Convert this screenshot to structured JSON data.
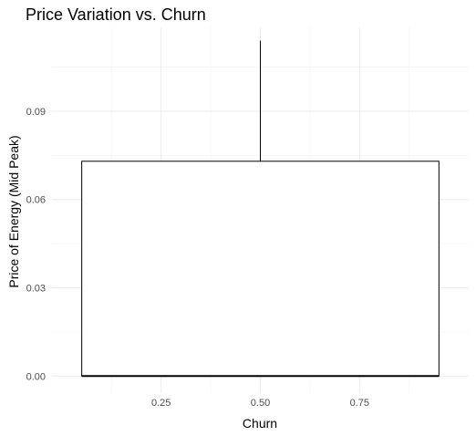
{
  "chart_data": {
    "type": "box",
    "title": "Price Variation vs. Churn",
    "xlabel": "Churn",
    "ylabel": "Price of Energy (Mid Peak)",
    "x_ticks": [
      {
        "value": 0.25,
        "label": "0.25"
      },
      {
        "value": 0.5,
        "label": "0.50"
      },
      {
        "value": 0.75,
        "label": "0.75"
      }
    ],
    "y_ticks": [
      {
        "value": 0.0,
        "label": "0.00"
      },
      {
        "value": 0.03,
        "label": "0.03"
      },
      {
        "value": 0.06,
        "label": "0.06"
      },
      {
        "value": 0.09,
        "label": "0.09"
      }
    ],
    "xlim": [
      -0.025,
      1.025
    ],
    "ylim": [
      -0.0058,
      0.1185
    ],
    "grid": true,
    "boxes": [
      {
        "x": 0.5,
        "x_range": [
          0.05,
          0.95
        ],
        "min": 0.0,
        "q1": 0.0,
        "median": 0.0,
        "q3": 0.073,
        "max": 0.114
      }
    ]
  }
}
